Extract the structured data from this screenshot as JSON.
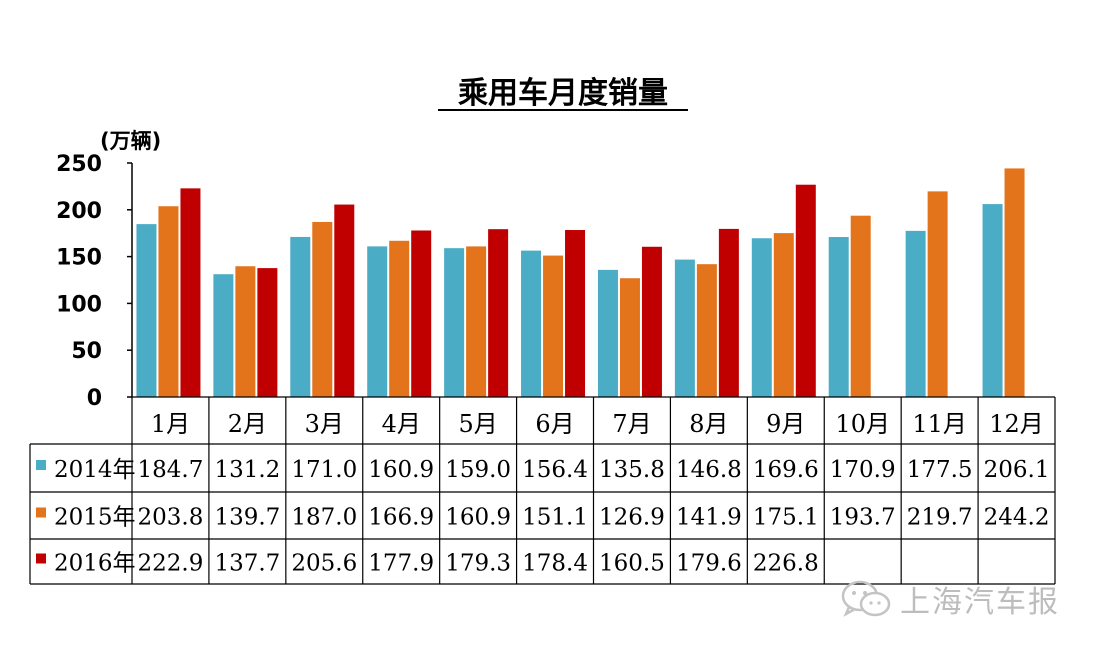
{
  "chart_data": {
    "type": "bar",
    "title": "乘用车月度销量",
    "ylabel": "(万辆)",
    "ylim": [
      0,
      250
    ],
    "yticks": [
      0,
      50,
      100,
      150,
      200,
      250
    ],
    "grid": false,
    "legend": "data-table-left",
    "categories": [
      "1月",
      "2月",
      "3月",
      "4月",
      "5月",
      "6月",
      "7月",
      "8月",
      "9月",
      "10月",
      "11月",
      "12月"
    ],
    "series": [
      {
        "name": "2014年",
        "color": "#4bacc6",
        "values": [
          184.7,
          131.2,
          171.0,
          160.9,
          159.0,
          156.4,
          135.8,
          146.8,
          169.6,
          170.9,
          177.5,
          206.1
        ],
        "labels": [
          "184.7",
          "131.2",
          "171.0",
          "160.9",
          "159.0",
          "156.4",
          "135.8",
          "146.8",
          "169.6",
          "170.9",
          "177.5",
          "206.1"
        ]
      },
      {
        "name": "2015年",
        "color": "#e3741b",
        "values": [
          203.8,
          139.7,
          187.0,
          166.9,
          160.9,
          151.1,
          126.9,
          141.9,
          175.1,
          193.7,
          219.7,
          244.2
        ],
        "labels": [
          "203.8",
          "139.7",
          "187.0",
          "166.9",
          "160.9",
          "151.1",
          "126.9",
          "141.9",
          "175.1",
          "193.7",
          "219.7",
          "244.2"
        ]
      },
      {
        "name": "2016年",
        "color": "#c00000",
        "values": [
          222.9,
          137.7,
          205.6,
          177.9,
          179.3,
          178.4,
          160.5,
          179.6,
          226.8,
          null,
          null,
          null
        ],
        "labels": [
          "222.9",
          "137.7",
          "205.6",
          "177.9",
          "179.3",
          "178.4",
          "160.5",
          "179.6",
          "226.8",
          "",
          "",
          ""
        ]
      }
    ]
  },
  "watermark": {
    "text": "上海汽车报",
    "icon": "wechat-icon"
  }
}
